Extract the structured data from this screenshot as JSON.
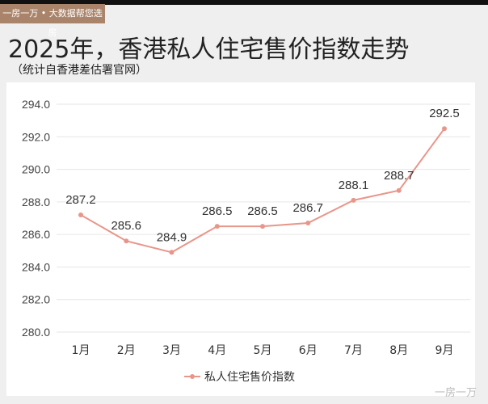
{
  "tag": "一房一万 • 大数据帮您选房",
  "title": "2025年，香港私人住宅售价指数走势",
  "subtitle": "（统计自香港差估署官网）",
  "watermark": "一房一万",
  "chart_data": {
    "type": "line",
    "title": "2025年，香港私人住宅售价指数走势",
    "categories": [
      "1月",
      "2月",
      "3月",
      "4月",
      "5月",
      "6月",
      "7月",
      "8月",
      "9月"
    ],
    "series": [
      {
        "name": "私人住宅售价指数",
        "values": [
          287.2,
          285.6,
          284.9,
          286.5,
          286.5,
          286.7,
          288.1,
          288.7,
          292.5
        ],
        "color": "#e8968a"
      }
    ],
    "yticks": [
      "280.0",
      "282.0",
      "284.0",
      "286.0",
      "288.0",
      "290.0",
      "292.0",
      "294.0"
    ],
    "ylim": [
      280,
      294
    ],
    "grid": true,
    "legend": "bottom"
  }
}
